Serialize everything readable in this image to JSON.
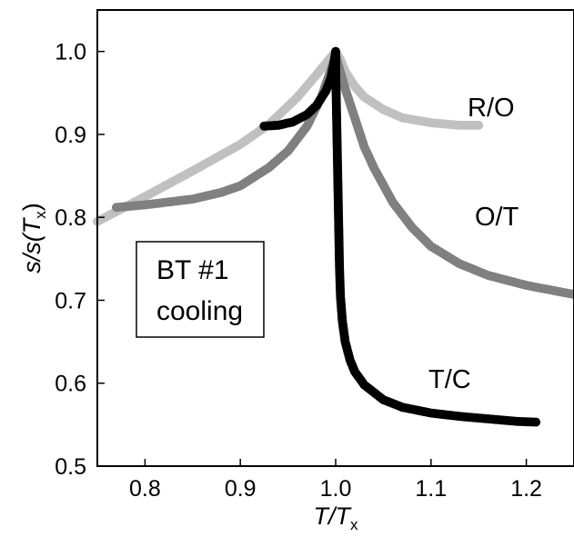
{
  "chart_data": {
    "type": "scatter",
    "xlabel": {
      "main": "T/T",
      "sub": "x"
    },
    "ylabel": {
      "main": "s/s(T",
      "sub": "x",
      "close": ")"
    },
    "xlim": [
      0.75,
      1.25
    ],
    "ylim": [
      0.5,
      1.05
    ],
    "xticks": [
      0.8,
      0.9,
      1.0,
      1.1,
      1.2
    ],
    "xtick_labels": [
      "0.8",
      "0.9",
      "1.0",
      "1.1",
      "1.2"
    ],
    "yticks": [
      0.5,
      0.6,
      0.7,
      0.8,
      0.9,
      1.0
    ],
    "ytick_labels": [
      "0.5",
      "0.6",
      "0.7",
      "0.8",
      "0.9",
      "1.0"
    ],
    "grid": false,
    "annotation_box": {
      "line1": "BT #1",
      "line2": "cooling"
    },
    "series": [
      {
        "name": "R/O",
        "color": "#c0c0c0",
        "x": [
          0.75,
          0.8,
          0.85,
          0.9,
          0.93,
          0.96,
          0.98,
          0.995,
          1.0,
          1.005,
          1.01,
          1.02,
          1.03,
          1.05,
          1.07,
          1.1,
          1.13,
          1.15
        ],
        "y": [
          0.795,
          0.825,
          0.856,
          0.888,
          0.912,
          0.945,
          0.972,
          0.993,
          1.0,
          0.99,
          0.976,
          0.958,
          0.945,
          0.93,
          0.92,
          0.914,
          0.911,
          0.911
        ]
      },
      {
        "name": "O/T",
        "color": "#808080",
        "x": [
          0.77,
          0.8,
          0.85,
          0.88,
          0.9,
          0.93,
          0.95,
          0.97,
          0.985,
          0.995,
          1.0,
          1.005,
          1.01,
          1.02,
          1.03,
          1.04,
          1.06,
          1.08,
          1.1,
          1.13,
          1.16,
          1.2,
          1.25
        ],
        "y": [
          0.812,
          0.815,
          0.822,
          0.83,
          0.838,
          0.86,
          0.88,
          0.91,
          0.945,
          0.978,
          0.995,
          0.975,
          0.955,
          0.92,
          0.885,
          0.86,
          0.818,
          0.788,
          0.765,
          0.744,
          0.73,
          0.718,
          0.707
        ]
      },
      {
        "name": "T/C",
        "color": "#000000",
        "x": [
          0.925,
          0.94,
          0.955,
          0.97,
          0.98,
          0.99,
          0.995,
          0.998,
          1.0,
          1.0,
          1.0005,
          1.001,
          1.0015,
          1.002,
          1.0025,
          1.003,
          1.0035,
          1.004,
          1.005,
          1.007,
          1.01,
          1.015,
          1.02,
          1.03,
          1.05,
          1.07,
          1.1,
          1.13,
          1.16,
          1.19,
          1.21
        ],
        "y": [
          0.91,
          0.911,
          0.915,
          0.924,
          0.935,
          0.953,
          0.968,
          0.985,
          1.0,
          0.975,
          0.95,
          0.92,
          0.89,
          0.86,
          0.83,
          0.8,
          0.77,
          0.74,
          0.705,
          0.675,
          0.65,
          0.628,
          0.614,
          0.598,
          0.58,
          0.571,
          0.564,
          0.56,
          0.557,
          0.554,
          0.553
        ]
      }
    ]
  }
}
